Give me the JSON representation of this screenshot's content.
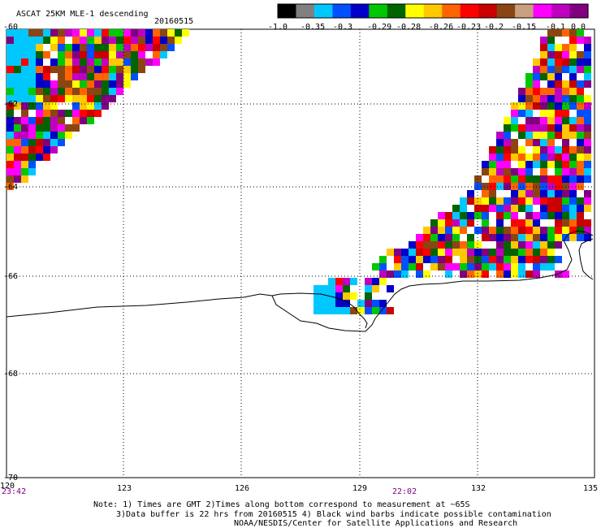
{
  "header": {
    "title": "ASCAT 25KM MLE-1 descending",
    "date": "20160515"
  },
  "legend": {
    "labels": [
      "-1.0",
      "-0.35",
      "-0.3",
      "-0.29",
      "-0.28",
      "-0.26",
      "-0.23",
      "-0.2",
      "-0.15",
      "-0.1",
      "0.0"
    ],
    "colors": [
      "#000000",
      "#808080",
      "#00c8ff",
      "#0050ff",
      "#0000c8",
      "#00c800",
      "#006400",
      "#ffff00",
      "#ffc800",
      "#ff6400",
      "#ff0000",
      "#c80000",
      "#8b4513",
      "#c8a080",
      "#ff00ff",
      "#c000c0",
      "#800080"
    ]
  },
  "map": {
    "lon_ticks": [
      "120",
      "123",
      "126",
      "129",
      "132",
      "135"
    ],
    "lat_ticks": [
      "-60",
      "-62",
      "-64",
      "-66",
      "-68",
      "-70"
    ],
    "time_labels": [
      "23:42",
      "22:02"
    ]
  },
  "notes": {
    "line1": "Note: 1) Times are GMT 2)Times along bottom correspond to measurement at ~65S",
    "line2": "3)Data buffer is 22 hrs from 20160515 4) Black wind barbs indicate possible contamination",
    "line3": "NOAA/NESDIS/Center for Satellite Applications and Research"
  }
}
